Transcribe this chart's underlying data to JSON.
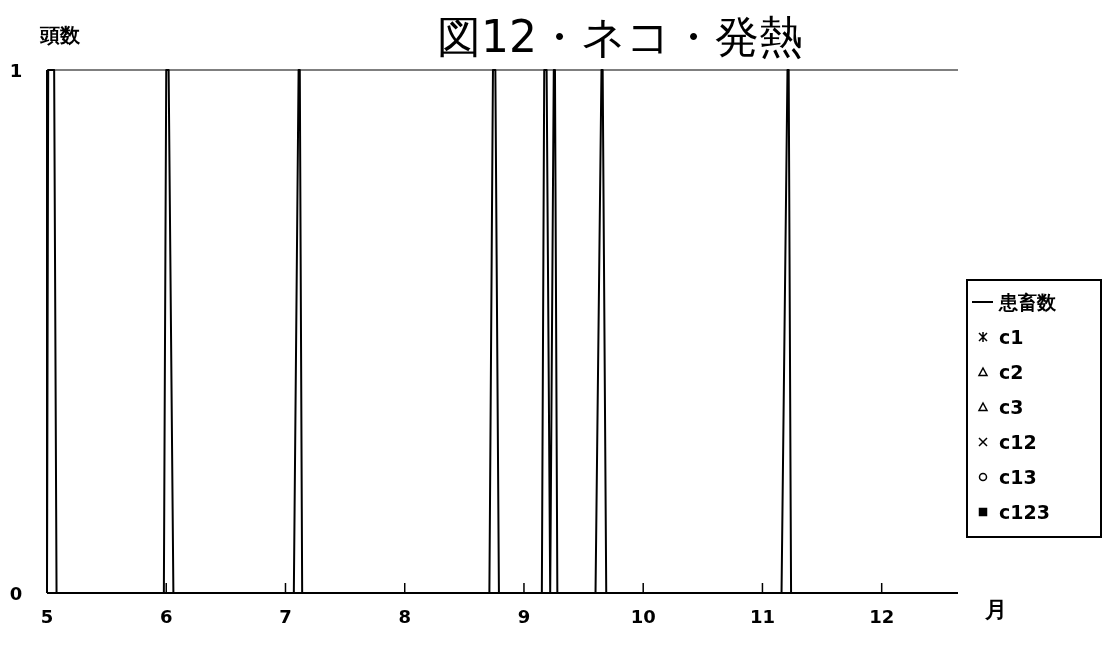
{
  "chart_data": {
    "type": "line",
    "title": "図12・ネコ・発熱",
    "xlabel": "月",
    "ylabel": "頭数",
    "xlim": [
      5,
      12.64
    ],
    "xticks": [
      5,
      6,
      7,
      8,
      9,
      10,
      11,
      12
    ],
    "ylim": [
      0,
      1
    ],
    "yticks": [
      0,
      1
    ],
    "grid": false,
    "legend": "right",
    "series": [
      {
        "name": "患畜数",
        "color": "#000000",
        "marker": "none",
        "line_style": "solid",
        "x": [
          5,
          5.01,
          5.06,
          5.08,
          5.98,
          6.0,
          6.02,
          6.06,
          7.07,
          7.11,
          7.12,
          7.14,
          8.71,
          8.74,
          8.76,
          8.79,
          9.15,
          9.17,
          9.19,
          9.22,
          9.25,
          9.26,
          9.28,
          9.6,
          9.65,
          9.66,
          9.69,
          11.16,
          11.21,
          11.22,
          11.24,
          12.64
        ],
        "values": [
          0,
          1,
          1,
          0,
          0,
          1,
          1,
          0,
          0,
          1,
          1,
          0,
          0,
          1,
          1,
          0,
          0,
          1,
          1,
          0,
          1,
          1,
          0,
          0,
          1,
          1,
          0,
          0,
          1,
          1,
          0,
          0
        ]
      },
      {
        "name": "c1",
        "color": "#000000",
        "marker": "star"
      },
      {
        "name": "c2",
        "color": "#000000",
        "marker": "triangle"
      },
      {
        "name": "c3",
        "color": "#000000",
        "marker": "triangle"
      },
      {
        "name": "c12",
        "color": "#000000",
        "marker": "cross"
      },
      {
        "name": "c13",
        "color": "#000000",
        "marker": "circle"
      },
      {
        "name": "c123",
        "color": "#000000",
        "marker": "square"
      }
    ]
  }
}
